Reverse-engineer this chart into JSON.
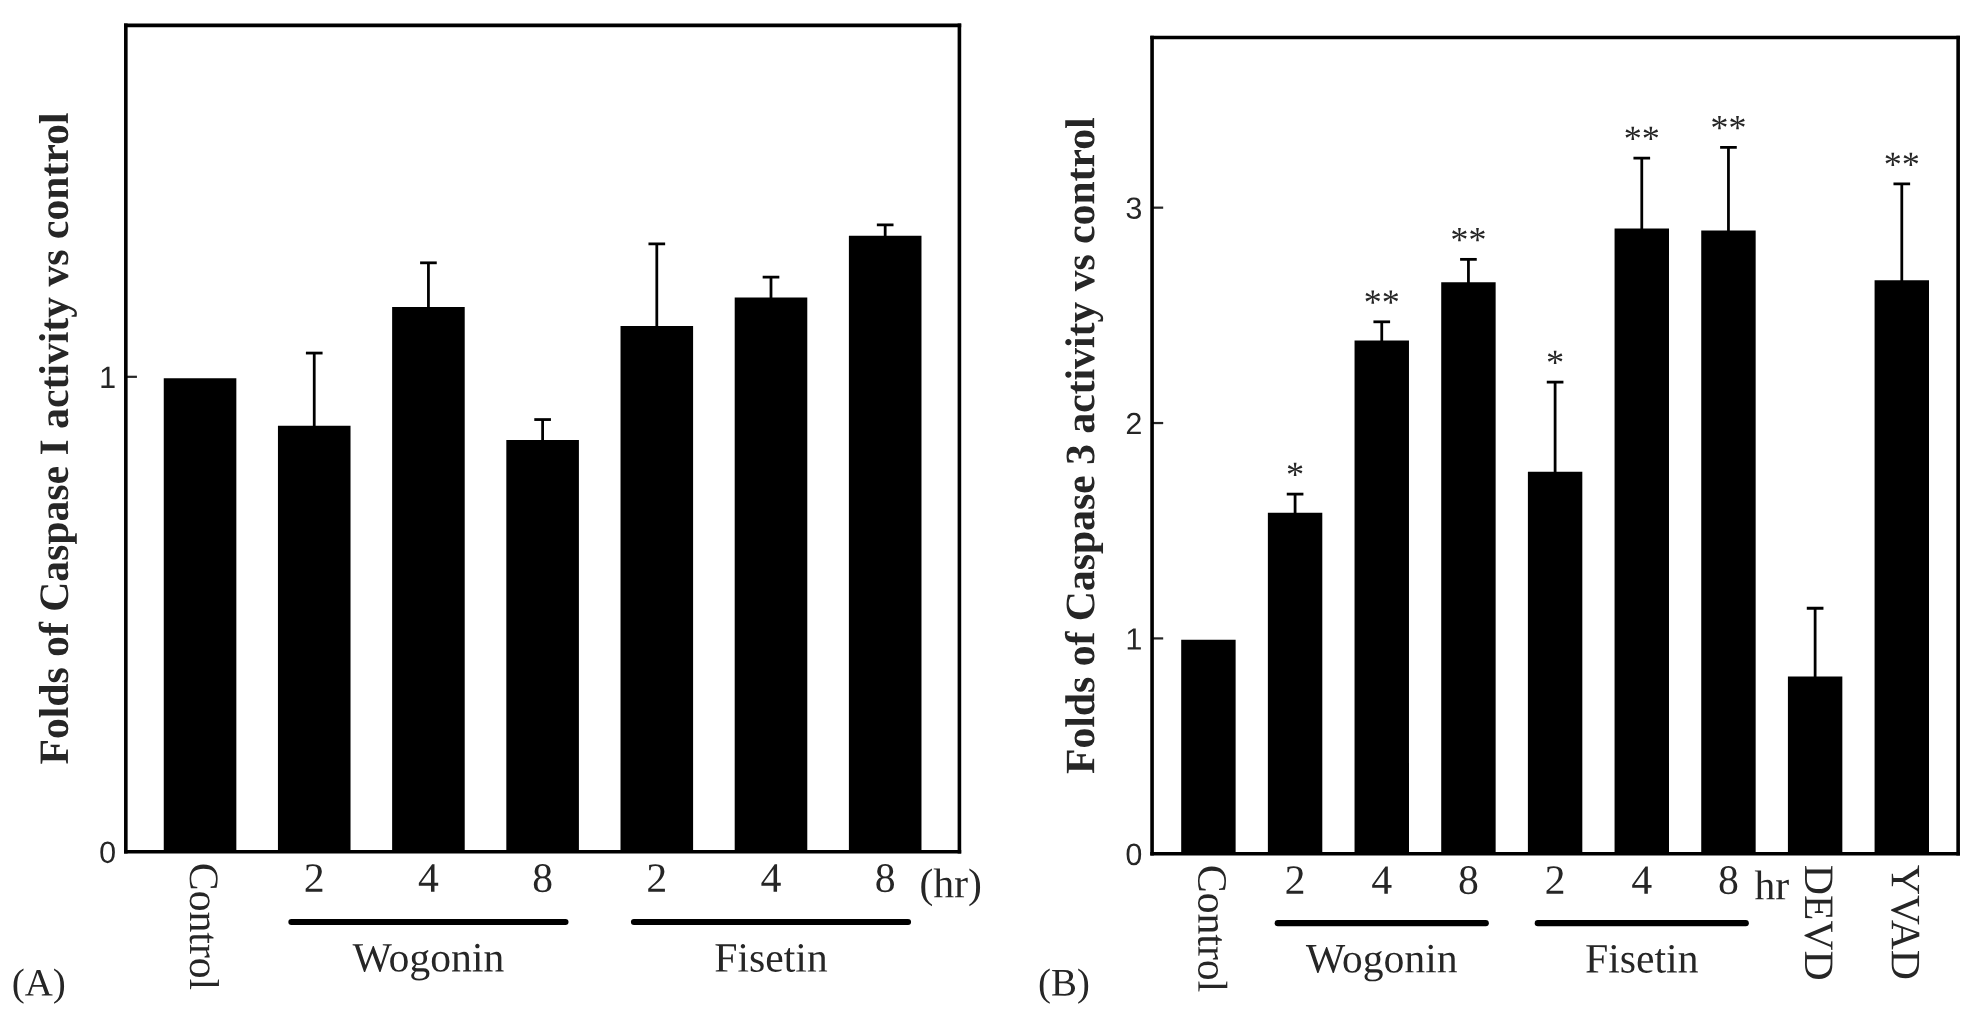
{
  "chart_data": [
    {
      "type": "bar",
      "ylabel": "Folds of Caspase I activity vs control",
      "categories": [
        "Control",
        "2",
        "4",
        "8",
        "2",
        "4",
        "8"
      ],
      "values": [
        1.0,
        0.9,
        1.15,
        0.87,
        1.11,
        1.17,
        1.3
      ],
      "errors": [
        null,
        0.15,
        0.09,
        0.04,
        0.17,
        0.04,
        0.02
      ],
      "color": "#000000",
      "ylim": [
        0,
        1.74
      ],
      "yticks": [
        0,
        1
      ],
      "annotations": [
        "(hr)",
        "Wogonin",
        "Fisetin",
        "(A)"
      ]
    },
    {
      "type": "bar",
      "ylabel": "Folds of Caspase 3 activity vs control",
      "categories": [
        "Control",
        "2",
        "4",
        "8",
        "2",
        "4",
        "8",
        "DEVD",
        "YVAD"
      ],
      "values": [
        1.0,
        1.59,
        2.39,
        2.66,
        1.78,
        2.91,
        2.9,
        0.83,
        2.67
      ],
      "errors": [
        null,
        0.08,
        0.08,
        0.1,
        0.41,
        0.32,
        0.38,
        0.31,
        0.44
      ],
      "color": "#000000",
      "ylim": [
        0,
        3.79
      ],
      "yticks": [
        0,
        1,
        2,
        3
      ],
      "value_labels": [
        null,
        "*",
        "**",
        "**",
        "*",
        "**",
        "**",
        null,
        "**"
      ],
      "annotations": [
        "hr",
        "Wogonin",
        "Fisetin",
        "(B)"
      ]
    }
  ]
}
